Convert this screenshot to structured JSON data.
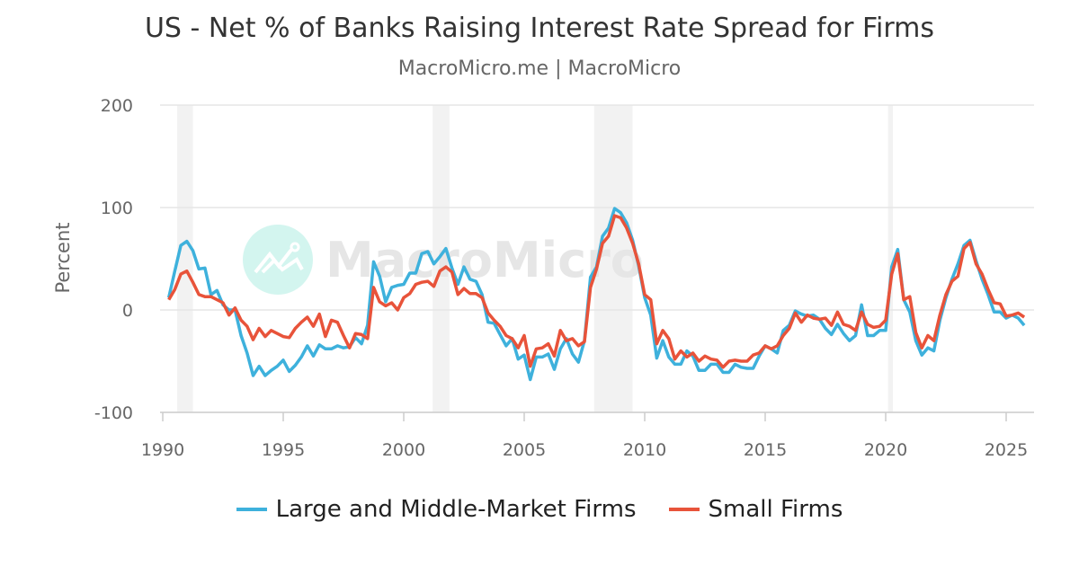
{
  "chart_data": {
    "type": "line",
    "title": "US - Net % of Banks Raising Interest Rate Spread for Firms",
    "subtitle": "MacroMicro.me | MacroMicro",
    "ylabel": "Percent",
    "xlabel": "",
    "ylim": [
      -100,
      200
    ],
    "xlim": [
      1990,
      2026
    ],
    "yticks": [
      "200",
      "100",
      "0",
      "-100"
    ],
    "xticks": [
      "1990",
      "1995",
      "2000",
      "2005",
      "2010",
      "2015",
      "2020",
      "2025"
    ],
    "grid": true,
    "legend_position": "bottom",
    "frequency": "quarterly",
    "x_start": "1990 Q2",
    "recession_shading": [
      [
        1990.6,
        1991.25
      ],
      [
        2001.2,
        2001.9
      ],
      [
        2007.9,
        2009.5
      ],
      [
        2020.1,
        2020.3
      ]
    ],
    "series": [
      {
        "name": "Large and Middle-Market Firms",
        "color": "#3EB1DC",
        "values": [
          12,
          38,
          63,
          67,
          58,
          40,
          41,
          15,
          19,
          5,
          0,
          0,
          -25,
          -42,
          -64,
          -55,
          -64,
          -59,
          -55,
          -49,
          -60,
          -54,
          -46,
          -35,
          -45,
          -34,
          -38,
          -38,
          -35,
          -37,
          -36,
          -27,
          -33,
          -15,
          47,
          33,
          8,
          22,
          24,
          25,
          36,
          36,
          55,
          57,
          45,
          52,
          60,
          41,
          25,
          42,
          30,
          28,
          15,
          -12,
          -13,
          -24,
          -35,
          -28,
          -48,
          -44,
          -68,
          -46,
          -46,
          -43,
          -58,
          -38,
          -28,
          -43,
          -51,
          -30,
          32,
          42,
          72,
          80,
          99,
          95,
          85,
          68,
          43,
          12,
          -5,
          -47,
          -30,
          -46,
          -53,
          -53,
          -40,
          -45,
          -59,
          -59,
          -53,
          -53,
          -61,
          -61,
          -53,
          -56,
          -57,
          -57,
          -45,
          -35,
          -38,
          -42,
          -20,
          -15,
          -1,
          -4,
          -6,
          -5,
          -9,
          -18,
          -24,
          -14,
          -23,
          -30,
          -25,
          5,
          -25,
          -25,
          -20,
          -20,
          42,
          59,
          10,
          -2,
          -30,
          -44,
          -37,
          -40,
          -10,
          12,
          30,
          45,
          63,
          68,
          48,
          30,
          15,
          -2,
          -2,
          -8,
          -5,
          -8,
          -15
        ]
      },
      {
        "name": "Small Firms",
        "color": "#E8533A",
        "values": [
          10,
          20,
          35,
          38,
          27,
          15,
          13,
          13,
          10,
          7,
          -5,
          2,
          -10,
          -16,
          -29,
          -18,
          -26,
          -20,
          -23,
          -26,
          -27,
          -18,
          -12,
          -7,
          -16,
          -4,
          -26,
          -10,
          -12,
          -25,
          -37,
          -23,
          -24,
          -28,
          22,
          8,
          4,
          7,
          0,
          12,
          16,
          25,
          27,
          28,
          23,
          38,
          42,
          37,
          15,
          21,
          16,
          16,
          12,
          -3,
          -10,
          -16,
          -25,
          -28,
          -37,
          -25,
          -55,
          -38,
          -37,
          -33,
          -45,
          -20,
          -30,
          -28,
          -35,
          -31,
          22,
          40,
          65,
          72,
          92,
          90,
          80,
          65,
          45,
          15,
          10,
          -33,
          -20,
          -28,
          -48,
          -40,
          -46,
          -42,
          -50,
          -45,
          -48,
          -49,
          -56,
          -50,
          -49,
          -50,
          -50,
          -44,
          -42,
          -35,
          -38,
          -35,
          -25,
          -18,
          -3,
          -12,
          -5,
          -8,
          -9,
          -8,
          -15,
          -2,
          -14,
          -16,
          -20,
          -2,
          -14,
          -17,
          -16,
          -10,
          35,
          55,
          10,
          13,
          -22,
          -37,
          -25,
          -30,
          -5,
          15,
          28,
          33,
          60,
          66,
          45,
          35,
          20,
          7,
          6,
          -6,
          -5,
          -3,
          -7
        ]
      }
    ]
  },
  "watermark": "MacroMicro"
}
